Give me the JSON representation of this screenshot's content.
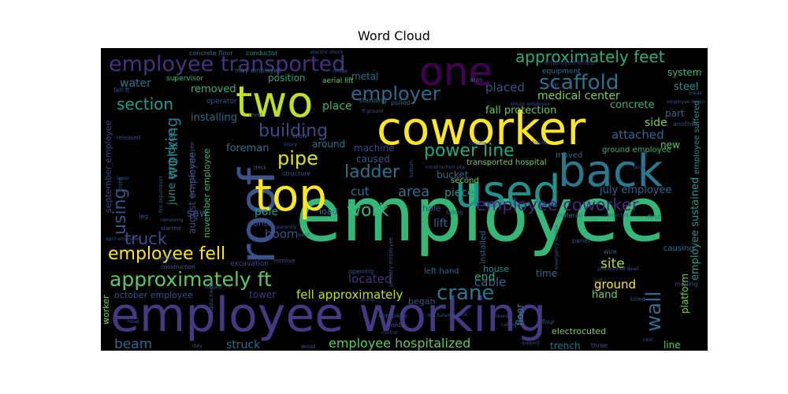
{
  "chart_data": {
    "type": "wordcloud",
    "title": "Word Cloud",
    "background": "#000000",
    "colormap": "viridis",
    "words": [
      {
        "text": "employee",
        "weight": 1.0,
        "color": "#35b779"
      },
      {
        "text": "employee working",
        "weight": 0.78,
        "color": "#443a83"
      },
      {
        "text": "coworker",
        "weight": 0.72,
        "color": "#fde725"
      },
      {
        "text": "roof",
        "weight": 0.66,
        "color": "#3b528b"
      },
      {
        "text": "used",
        "weight": 0.6,
        "color": "#21918c"
      },
      {
        "text": "one",
        "weight": 0.58,
        "color": "#440154"
      },
      {
        "text": "back",
        "weight": 0.56,
        "color": "#2a788e"
      },
      {
        "text": "two",
        "weight": 0.54,
        "color": "#c2df23"
      },
      {
        "text": "top",
        "weight": 0.52,
        "color": "#fde725"
      },
      {
        "text": "employee transported",
        "weight": 0.38,
        "color": "#46327e"
      },
      {
        "text": "approximately ft",
        "weight": 0.34,
        "color": "#5ec962"
      },
      {
        "text": "scaffold",
        "weight": 0.33,
        "color": "#2c728e"
      },
      {
        "text": "employer",
        "weight": 0.3,
        "color": "#31688e"
      },
      {
        "text": "approximately feet",
        "weight": 0.28,
        "color": "#28ae80"
      },
      {
        "text": "employee fell",
        "weight": 0.28,
        "color": "#fde725"
      },
      {
        "text": "power line",
        "weight": 0.28,
        "color": "#22a884"
      },
      {
        "text": "crane",
        "weight": 0.28,
        "color": "#2a788e"
      },
      {
        "text": "wall",
        "weight": 0.27,
        "color": "#31688e"
      },
      {
        "text": "employee coworker",
        "weight": 0.27,
        "color": "#482878"
      },
      {
        "text": "building",
        "weight": 0.26,
        "color": "#3e4a89"
      },
      {
        "text": "section",
        "weight": 0.24,
        "color": "#1f9e89"
      },
      {
        "text": "pipe",
        "weight": 0.26,
        "color": "#dce319"
      },
      {
        "text": "ladder",
        "weight": 0.24,
        "color": "#2c728e"
      },
      {
        "text": "working",
        "weight": 0.24,
        "color": "#2a788e"
      },
      {
        "text": "using",
        "weight": 0.24,
        "color": "#3b528b"
      },
      {
        "text": "work",
        "weight": 0.24,
        "color": "#35b779"
      },
      {
        "text": "truck",
        "weight": 0.22,
        "color": "#3e4a89"
      },
      {
        "text": "area",
        "weight": 0.2,
        "color": "#2c728e"
      },
      {
        "text": "employee hospitalized",
        "weight": 0.18,
        "color": "#5ec962"
      },
      {
        "text": "fell approximately",
        "weight": 0.16,
        "color": "#c2df23"
      },
      {
        "text": "beam",
        "weight": 0.2,
        "color": "#31688e"
      },
      {
        "text": "struck",
        "weight": 0.16,
        "color": "#31688e"
      },
      {
        "text": "medical center",
        "weight": 0.14,
        "color": "#7ad151"
      },
      {
        "text": "fall protection",
        "weight": 0.12,
        "color": "#5ec962"
      },
      {
        "text": "placed",
        "weight": 0.16,
        "color": "#3b528b"
      },
      {
        "text": "cut",
        "weight": 0.16,
        "color": "#2c728e"
      },
      {
        "text": "piece",
        "weight": 0.15,
        "color": "#21918c"
      },
      {
        "text": "july employee",
        "weight": 0.14,
        "color": "#31688e"
      },
      {
        "text": "attached",
        "weight": 0.16,
        "color": "#31688e"
      },
      {
        "text": "side",
        "weight": 0.15,
        "color": "#7ad151"
      },
      {
        "text": "employee sustained",
        "weight": 0.14,
        "color": "#1f9e89"
      },
      {
        "text": "ground",
        "weight": 0.15,
        "color": "#fde725"
      },
      {
        "text": "hand",
        "weight": 0.13,
        "color": "#7ad151"
      },
      {
        "text": "site",
        "weight": 0.16,
        "color": "#b5de2b"
      },
      {
        "text": "cable",
        "weight": 0.15,
        "color": "#31688e"
      },
      {
        "text": "end",
        "weight": 0.15,
        "color": "#22a884"
      },
      {
        "text": "located",
        "weight": 0.15,
        "color": "#46327e"
      },
      {
        "text": "lift",
        "weight": 0.15,
        "color": "#31688e"
      },
      {
        "text": "boom",
        "weight": 0.15,
        "color": "#3e4a89"
      },
      {
        "text": "pole",
        "weight": 0.14,
        "color": "#1f9e89"
      },
      {
        "text": "saw",
        "weight": 0.14,
        "color": "#3b528b"
      },
      {
        "text": "concrete",
        "weight": 0.13,
        "color": "#35b779"
      },
      {
        "text": "steel",
        "weight": 0.13,
        "color": "#21918c"
      },
      {
        "text": "system",
        "weight": 0.12,
        "color": "#35b779"
      },
      {
        "text": "new",
        "weight": 0.11,
        "color": "#5ec962"
      },
      {
        "text": "part",
        "weight": 0.11,
        "color": "#31688e"
      },
      {
        "text": "water",
        "weight": 0.14,
        "color": "#2c728e"
      },
      {
        "text": "removed",
        "weight": 0.13,
        "color": "#35b779"
      },
      {
        "text": "installing",
        "weight": 0.13,
        "color": "#31688e"
      },
      {
        "text": "position",
        "weight": 0.12,
        "color": "#22a884"
      },
      {
        "text": "place",
        "weight": 0.14,
        "color": "#35b779"
      },
      {
        "text": "metal",
        "weight": 0.12,
        "color": "#2c728e"
      },
      {
        "text": "around",
        "weight": 0.12,
        "color": "#2c728e"
      },
      {
        "text": "foreman",
        "weight": 0.13,
        "color": "#2c728e"
      },
      {
        "text": "machine",
        "weight": 0.12,
        "color": "#3e4a89"
      },
      {
        "text": "caused",
        "weight": 0.11,
        "color": "#3b528b"
      },
      {
        "text": "bucket",
        "weight": 0.11,
        "color": "#31688e"
      },
      {
        "text": "june employee",
        "weight": 0.13,
        "color": "#21918c"
      },
      {
        "text": "august employee",
        "weight": 0.12,
        "color": "#3e4a89"
      },
      {
        "text": "november employee",
        "weight": 0.11,
        "color": "#35b779"
      },
      {
        "text": "september employee",
        "weight": 0.11,
        "color": "#414487"
      },
      {
        "text": "october employee",
        "weight": 0.11,
        "color": "#3b528b"
      },
      {
        "text": "tower",
        "weight": 0.11,
        "color": "#443983"
      },
      {
        "text": "worker",
        "weight": 0.1,
        "color": "#7ad151"
      },
      {
        "text": "platform",
        "weight": 0.11,
        "color": "#7ad151"
      },
      {
        "text": "line",
        "weight": 0.11,
        "color": "#5ec962"
      },
      {
        "text": "floor",
        "weight": 0.12,
        "color": "#21918c"
      },
      {
        "text": "time",
        "weight": 0.11,
        "color": "#31688e"
      },
      {
        "text": "trench",
        "weight": 0.11,
        "color": "#2c728e"
      },
      {
        "text": "electrocuted",
        "weight": 0.1,
        "color": "#7ad151"
      },
      {
        "text": "ground employee",
        "weight": 0.1,
        "color": "#35b779"
      },
      {
        "text": "employee suffered",
        "weight": 0.09,
        "color": "#21918c"
      },
      {
        "text": "transported hospital",
        "weight": 0.09,
        "color": "#7ad151"
      },
      {
        "text": "house",
        "weight": 0.1,
        "color": "#21918c"
      },
      {
        "text": "hole",
        "weight": 0.1,
        "color": "#3e4a89"
      },
      {
        "text": "load",
        "weight": 0.1,
        "color": "#2c728e"
      },
      {
        "text": "onto",
        "weight": 0.1,
        "color": "#3e4a89"
      },
      {
        "text": "began",
        "weight": 0.1,
        "color": "#3b528b"
      },
      {
        "text": "left hand",
        "weight": 0.09,
        "color": "#31688e"
      },
      {
        "text": "second",
        "weight": 0.09,
        "color": "#7ad151"
      },
      {
        "text": "installed",
        "weight": 0.09,
        "color": "#31688e"
      },
      {
        "text": "moved",
        "weight": 0.09,
        "color": "#31688e"
      },
      {
        "text": "supervisor",
        "weight": 0.08,
        "color": "#35b779"
      },
      {
        "text": "operator",
        "weight": 0.08,
        "color": "#3b528b"
      },
      {
        "text": "aerial lift",
        "weight": 0.08,
        "color": "#5ec962"
      },
      {
        "text": "equipment",
        "weight": 0.07,
        "color": "#2c728e"
      },
      {
        "text": "employee killed",
        "weight": 0.07,
        "color": "#443983"
      },
      {
        "text": "may employee",
        "weight": 0.07,
        "color": "#31688e"
      },
      {
        "text": "concrete floor",
        "weight": 0.07,
        "color": "#2c728e"
      },
      {
        "text": "conductor",
        "weight": 0.07,
        "color": "#21918c"
      },
      {
        "text": "standing",
        "weight": 0.07,
        "color": "#2c728e"
      },
      {
        "text": "pulled",
        "weight": 0.07,
        "color": "#31688e"
      },
      {
        "text": "arm",
        "weight": 0.07,
        "color": "#31688e"
      },
      {
        "text": "company",
        "weight": 0.07,
        "color": "#3e4a89"
      },
      {
        "text": "inside",
        "weight": 0.07,
        "color": "#3b528b"
      },
      {
        "text": "material",
        "weight": 0.07,
        "color": "#2c728e"
      },
      {
        "text": "panel",
        "weight": 0.07,
        "color": "#3b528b"
      },
      {
        "text": "wire",
        "weight": 0.07,
        "color": "#31688e"
      },
      {
        "text": "causing",
        "weight": 0.08,
        "color": "#2c728e"
      },
      {
        "text": "first",
        "weight": 0.07,
        "color": "#2c728e"
      },
      {
        "text": "excavation",
        "weight": 0.07,
        "color": "#3e4a89"
      },
      {
        "text": "construction",
        "weight": 0.06,
        "color": "#2c728e"
      },
      {
        "text": "opening",
        "weight": 0.06,
        "color": "#3b528b"
      },
      {
        "text": "started",
        "weight": 0.06,
        "color": "#3b528b"
      },
      {
        "text": "remove",
        "weight": 0.06,
        "color": "#3b528b"
      },
      {
        "text": "forklift",
        "weight": 0.06,
        "color": "#3b528b"
      },
      {
        "text": "released",
        "weight": 0.06,
        "color": "#3b528b"
      },
      {
        "text": "use",
        "weight": 0.06,
        "color": "#3b528b"
      },
      {
        "text": "killed",
        "weight": 0.06,
        "color": "#3b528b"
      },
      {
        "text": "four",
        "weight": 0.06,
        "color": "#3b528b"
      },
      {
        "text": "three",
        "weight": 0.06,
        "color": "#3b528b"
      },
      {
        "text": "day",
        "weight": 0.06,
        "color": "#3b528b"
      },
      {
        "text": "wood",
        "weight": 0.06,
        "color": "#3b528b"
      },
      {
        "text": "support",
        "weight": 0.05,
        "color": "#3b528b"
      },
      {
        "text": "leg",
        "weight": 0.06,
        "color": "#3b528b"
      },
      {
        "text": "crew",
        "weight": 0.06,
        "color": "#3b528b"
      },
      {
        "text": "structure",
        "weight": 0.06,
        "color": "#3b528b"
      },
      {
        "text": "deck",
        "weight": 0.05,
        "color": "#3b528b"
      },
      {
        "text": "falling",
        "weight": 0.05,
        "color": "#3b528b"
      },
      {
        "text": "control",
        "weight": 0.05,
        "color": "#3b528b"
      },
      {
        "text": "lost balance",
        "weight": 0.05,
        "color": "#3b528b"
      },
      {
        "text": "unit",
        "weight": 0.05,
        "color": "#3b528b"
      },
      {
        "text": "moving",
        "weight": 0.06,
        "color": "#3b528b"
      },
      {
        "text": "another",
        "weight": 0.06,
        "color": "#3b528b"
      },
      {
        "text": "fell ft",
        "weight": 0.06,
        "color": "#3b528b"
      },
      {
        "text": "apparently",
        "weight": 0.05,
        "color": "#3b528b"
      },
      {
        "text": "january employee",
        "weight": 0.05,
        "color": "#3b528b"
      },
      {
        "text": "december employee",
        "weight": 0.05,
        "color": "#3b528b"
      },
      {
        "text": "april employee",
        "weight": 0.05,
        "color": "#3b528b"
      },
      {
        "text": "level",
        "weight": 0.05,
        "color": "#3b528b"
      },
      {
        "text": "fire department",
        "weight": 0.05,
        "color": "#3b528b"
      },
      {
        "text": "front",
        "weight": 0.05,
        "color": "#3b528b"
      },
      {
        "text": "struck employee",
        "weight": 0.04,
        "color": "#3b528b"
      },
      {
        "text": "employee taken",
        "weight": 0.04,
        "color": "#3b528b"
      },
      {
        "text": "electric shock",
        "weight": 0.04,
        "color": "#3b528b"
      },
      {
        "text": "ft ground",
        "weight": 0.04,
        "color": "#3b528b"
      },
      {
        "text": "construction site",
        "weight": 0.04,
        "color": "#3b528b"
      },
      {
        "text": "emergency service",
        "weight": 0.04,
        "color": "#3b528b"
      },
      {
        "text": "pronounced dead",
        "weight": 0.04,
        "color": "#3b528b"
      },
      {
        "text": "tank",
        "weight": 0.04,
        "color": "#3b528b"
      },
      {
        "text": "board",
        "weight": 0.04,
        "color": "#3b528b"
      },
      {
        "text": "ceiling",
        "weight": 0.04,
        "color": "#3b528b"
      },
      {
        "text": "next",
        "weight": 0.04,
        "color": "#3b528b"
      },
      {
        "text": "head",
        "weight": 0.04,
        "color": "#3b528b"
      },
      {
        "text": "bottom",
        "weight": 0.04,
        "color": "#3b528b"
      },
      {
        "text": "column",
        "weight": 0.04,
        "color": "#3b528b"
      },
      {
        "text": "found",
        "weight": 0.04,
        "color": "#3b528b"
      },
      {
        "text": "connected",
        "weight": 0.04,
        "color": "#3b528b"
      },
      {
        "text": "large",
        "weight": 0.04,
        "color": "#3b528b"
      },
      {
        "text": "along",
        "weight": 0.04,
        "color": "#3b528b"
      },
      {
        "text": "bridge",
        "weight": 0.04,
        "color": "#3b528b"
      },
      {
        "text": "injury",
        "weight": 0.04,
        "color": "#3b528b"
      },
      {
        "text": "break",
        "weight": 0.04,
        "color": "#3b528b"
      },
      {
        "text": "went",
        "weight": 0.04,
        "color": "#3b528b"
      },
      {
        "text": "lower",
        "weight": 0.04,
        "color": "#3b528b"
      },
      {
        "text": "removing",
        "weight": 0.04,
        "color": "#3b528b"
      },
      {
        "text": "tripped",
        "weight": 0.04,
        "color": "#3b528b"
      },
      {
        "text": "hospital treated",
        "weight": 0.04,
        "color": "#3b528b"
      }
    ]
  }
}
